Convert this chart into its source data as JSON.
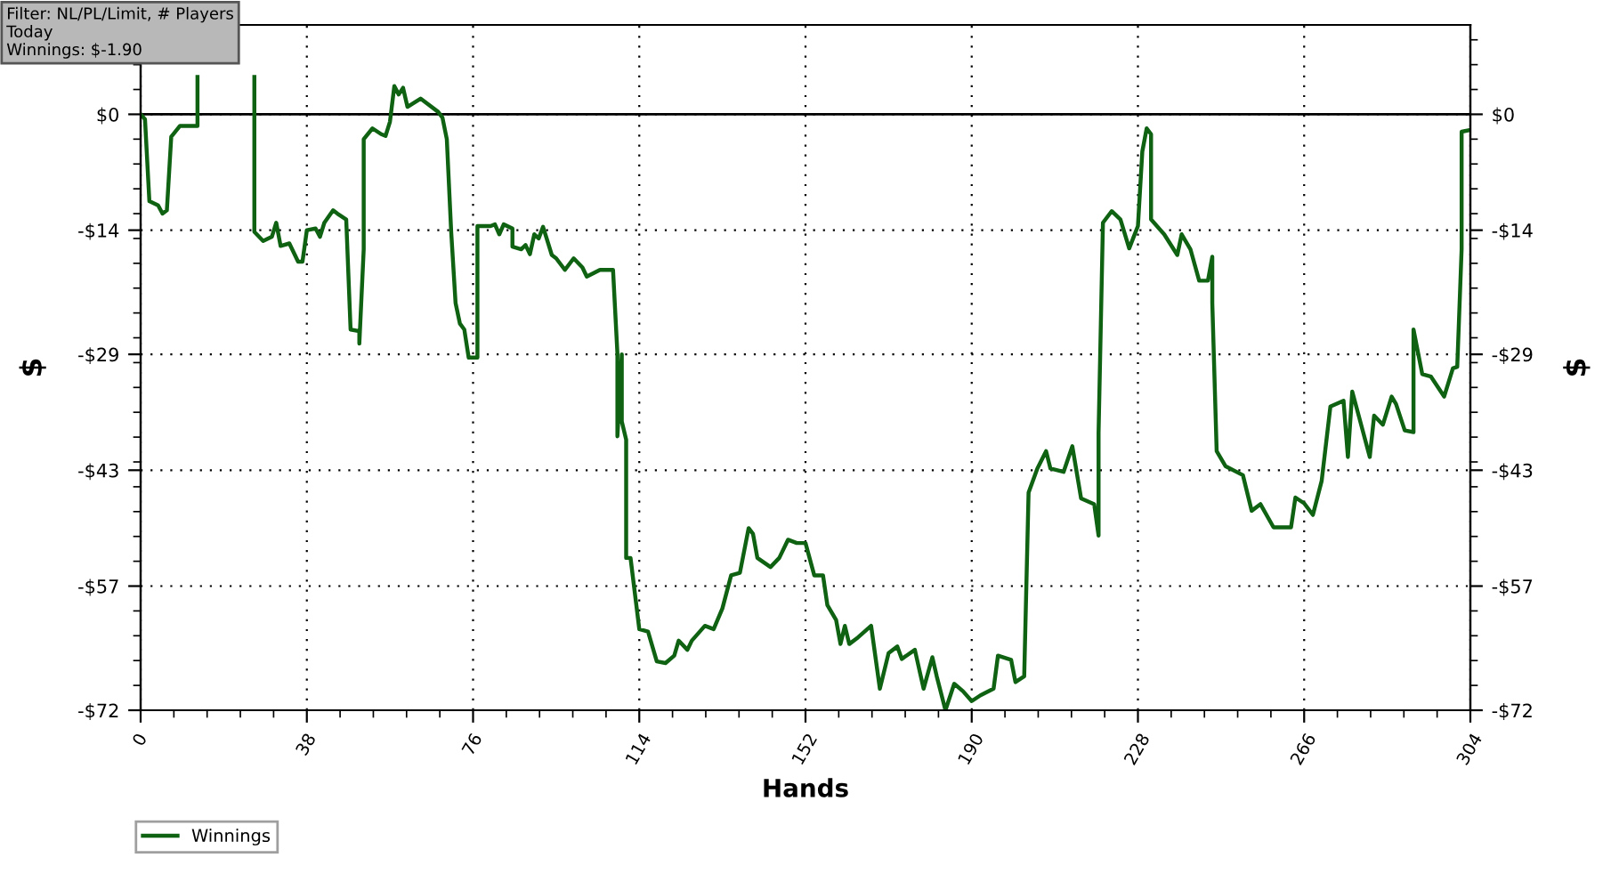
{
  "chart_data": {
    "type": "line",
    "xlabel": "Hands",
    "ylabel": "$",
    "y2label": "$",
    "annotations": [
      "Filter: NL/PL/Limit, # Players\nToday\nWinnings: $-1.90"
    ],
    "x": [
      0,
      1,
      2,
      4,
      5,
      6,
      7,
      9,
      13,
      13,
      20,
      26,
      26,
      26,
      28,
      30,
      31,
      32,
      34,
      36,
      37,
      38,
      40,
      41,
      42,
      44,
      45,
      47,
      48,
      50,
      50,
      51,
      51,
      53,
      55,
      56,
      57,
      58,
      59,
      60,
      61,
      64,
      68,
      69,
      70,
      71,
      72,
      73,
      74,
      75,
      77,
      77,
      80,
      81,
      82,
      83,
      85,
      85,
      87,
      88,
      89,
      90,
      91,
      92,
      94,
      95,
      97,
      99,
      101,
      102,
      105,
      108,
      109,
      109,
      110,
      110,
      111,
      111,
      112,
      114,
      116,
      118,
      120,
      122,
      123,
      125,
      126,
      129,
      131,
      133,
      135,
      137,
      139,
      140,
      141,
      144,
      146,
      148,
      150,
      152,
      154,
      156,
      157,
      159,
      160,
      161,
      162,
      164,
      167,
      169,
      171,
      173,
      174,
      177,
      179,
      181,
      182,
      184,
      186,
      188,
      190,
      192,
      195,
      196,
      199,
      200,
      202,
      203,
      205,
      207,
      208,
      211,
      213,
      215,
      218,
      219,
      219,
      220,
      222,
      224,
      226,
      228,
      229,
      230,
      231,
      231,
      234,
      237,
      238,
      240,
      242,
      244,
      245,
      245,
      246,
      248,
      252,
      254,
      256,
      259,
      263,
      264,
      266,
      268,
      270,
      272,
      275,
      276,
      277,
      281,
      282,
      284,
      286,
      287,
      289,
      291,
      291,
      293,
      295,
      298,
      300,
      301,
      302,
      302,
      304
    ],
    "series": [
      {
        "name": "Winnings",
        "color": "#0e6212",
        "values": [
          0,
          -0.6,
          -10.5,
          -11.0,
          -12.0,
          -11.6,
          -2.7,
          -1.4,
          -1.4,
          4.5,
          null,
          4.5,
          -3.4,
          -14.2,
          -15.3,
          -14.8,
          -13.1,
          -15.9,
          -15.6,
          -17.8,
          -17.8,
          -14.0,
          -13.8,
          -14.8,
          -13.1,
          -11.6,
          -12.0,
          -12.7,
          -26.0,
          -26.2,
          -27.7,
          -16.3,
          -3.0,
          -1.7,
          -2.4,
          -2.6,
          -0.9,
          3.4,
          2.4,
          3.2,
          0.9,
          1.9,
          0.3,
          -0.4,
          -3.0,
          -14.2,
          -22.8,
          -25.3,
          -26.0,
          -29.4,
          -29.4,
          -13.5,
          -13.5,
          -13.3,
          -14.5,
          -13.3,
          -13.8,
          -16.0,
          -16.3,
          -15.8,
          -16.9,
          -14.5,
          -15.0,
          -13.6,
          -17.0,
          -17.4,
          -18.8,
          -17.4,
          -18.5,
          -19.6,
          -18.8,
          -18.8,
          -28.9,
          -38.9,
          -29.0,
          -37.1,
          -39.3,
          -53.6,
          -53.6,
          -62.2,
          -62.5,
          -66.1,
          -66.3,
          -65.4,
          -63.6,
          -64.7,
          -63.6,
          -61.8,
          -62.2,
          -59.7,
          -55.7,
          -55.4,
          -50.0,
          -50.7,
          -53.6,
          -54.7,
          -53.6,
          -51.4,
          -51.8,
          -51.8,
          -55.7,
          -55.7,
          -59.3,
          -61.1,
          -64.0,
          -61.8,
          -64.0,
          -63.2,
          -61.8,
          -69.4,
          -65.1,
          -64.3,
          -65.8,
          -64.7,
          -69.4,
          -65.6,
          -67.9,
          -72.0,
          -68.8,
          -69.7,
          -70.9,
          -70.2,
          -69.4,
          -65.4,
          -65.9,
          -68.6,
          -67.9,
          -45.7,
          -42.8,
          -40.7,
          -42.8,
          -43.2,
          -40.1,
          -46.4,
          -47.1,
          -50.9,
          -38.5,
          -13.1,
          -11.7,
          -12.7,
          -16.2,
          -13.5,
          -4.5,
          -1.7,
          -2.4,
          -12.7,
          -14.5,
          -17.0,
          -14.5,
          -16.3,
          -20.1,
          -20.1,
          -17.2,
          -22.8,
          -40.7,
          -42.5,
          -43.6,
          -47.9,
          -47.1,
          -49.9,
          -49.9,
          -46.3,
          -47.0,
          -48.4,
          -44.3,
          -35.3,
          -34.6,
          -41.4,
          -33.5,
          -41.4,
          -36.4,
          -37.5,
          -34.1,
          -35.0,
          -38.2,
          -38.4,
          -26.0,
          -31.4,
          -31.7,
          -34.1,
          -30.7,
          -30.5,
          -16.3,
          -2.1,
          -1.9
        ]
      }
    ],
    "xlim": [
      0,
      304
    ],
    "xticks": [
      0,
      38,
      76,
      114,
      152,
      190,
      228,
      266,
      304
    ],
    "ylim": [
      -72,
      10.8
    ],
    "yticks": [
      {
        "value": 0,
        "label": "$0"
      },
      {
        "value": -14,
        "label": "-$14"
      },
      {
        "value": -29,
        "label": "-$29"
      },
      {
        "value": -43,
        "label": "-$43"
      },
      {
        "value": -57,
        "label": "-$57"
      },
      {
        "value": -72,
        "label": "-$72"
      }
    ],
    "y2lim": [
      -72,
      10.8
    ],
    "y2ticks": [
      {
        "value": 0,
        "label": "$0"
      },
      {
        "value": -14,
        "label": "-$14"
      },
      {
        "value": -29,
        "label": "-$29"
      },
      {
        "value": -43,
        "label": "-$43"
      },
      {
        "value": -57,
        "label": "-$57"
      },
      {
        "value": -72,
        "label": "-$72"
      }
    ],
    "ref_lines": [
      {
        "axis": "y",
        "value": 0,
        "color": "#000000"
      }
    ],
    "grid": true,
    "legend": "bottom left",
    "line_style": "solid",
    "marker": "none"
  }
}
